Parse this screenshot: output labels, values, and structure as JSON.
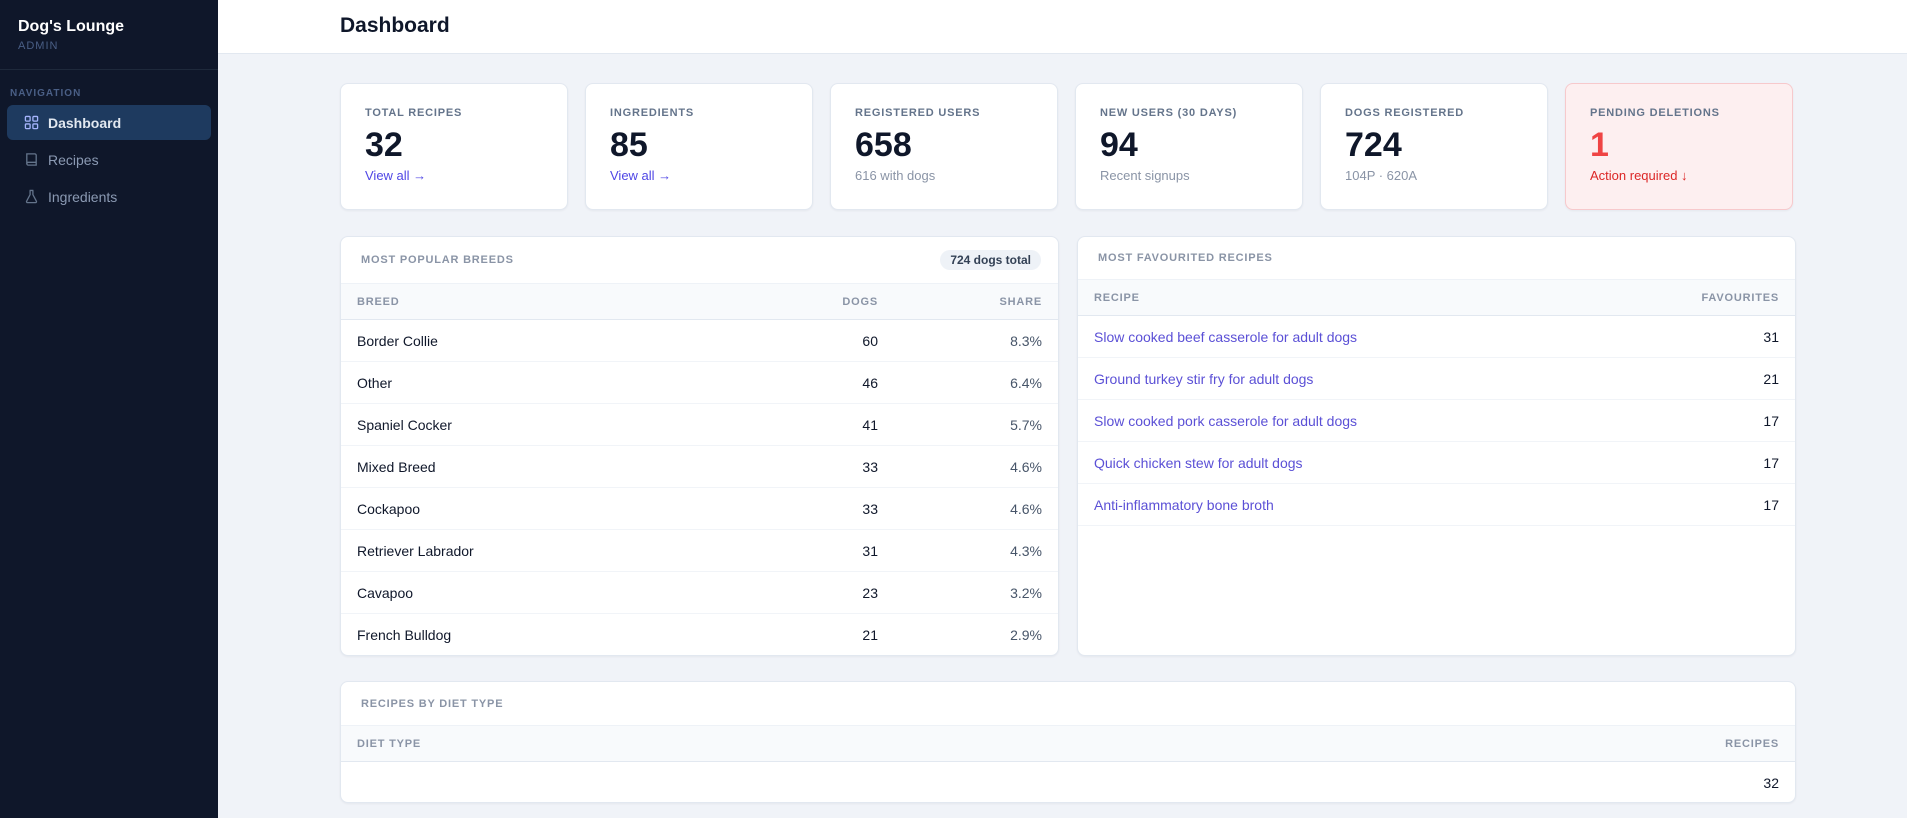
{
  "sidebar": {
    "brand_title": "Dog's Lounge",
    "brand_sub": "ADMIN",
    "nav_heading": "NAVIGATION",
    "items": [
      {
        "label": "Dashboard",
        "icon": "grid-icon",
        "active": true
      },
      {
        "label": "Recipes",
        "icon": "book-icon",
        "active": false
      },
      {
        "label": "Ingredients",
        "icon": "flask-icon",
        "active": false
      }
    ]
  },
  "header": {
    "title": "Dashboard"
  },
  "stats": [
    {
      "label": "TOTAL RECIPES",
      "value": "32",
      "link": "View all →"
    },
    {
      "label": "INGREDIENTS",
      "value": "85",
      "link": "View all →"
    },
    {
      "label": "REGISTERED USERS",
      "value": "658",
      "sub": "616 with dogs"
    },
    {
      "label": "NEW USERS (30 DAYS)",
      "value": "94",
      "sub": "Recent signups"
    },
    {
      "label": "DOGS REGISTERED",
      "value": "724",
      "sub": "104P · 620A"
    },
    {
      "label": "PENDING DELETIONS",
      "value": "1",
      "sub": "Action required ↓"
    }
  ],
  "breeds": {
    "title": "MOST POPULAR BREEDS",
    "badge": "724 dogs total",
    "columns": [
      "BREED",
      "DOGS",
      "SHARE"
    ],
    "rows": [
      {
        "breed": "Border Collie",
        "dogs": "60",
        "share": "8.3%"
      },
      {
        "breed": "Other",
        "dogs": "46",
        "share": "6.4%"
      },
      {
        "breed": "Spaniel Cocker",
        "dogs": "41",
        "share": "5.7%"
      },
      {
        "breed": "Mixed Breed",
        "dogs": "33",
        "share": "4.6%"
      },
      {
        "breed": "Cockapoo",
        "dogs": "33",
        "share": "4.6%"
      },
      {
        "breed": "Retriever Labrador",
        "dogs": "31",
        "share": "4.3%"
      },
      {
        "breed": "Cavapoo",
        "dogs": "23",
        "share": "3.2%"
      },
      {
        "breed": "French Bulldog",
        "dogs": "21",
        "share": "2.9%"
      }
    ]
  },
  "favourites": {
    "title": "MOST FAVOURITED RECIPES",
    "columns": [
      "RECIPE",
      "FAVOURITES"
    ],
    "rows": [
      {
        "recipe": "Slow cooked beef casserole for adult dogs",
        "count": "31"
      },
      {
        "recipe": "Ground turkey stir fry for adult dogs",
        "count": "21"
      },
      {
        "recipe": "Slow cooked pork casserole for adult dogs",
        "count": "17"
      },
      {
        "recipe": "Quick chicken stew for adult dogs",
        "count": "17"
      },
      {
        "recipe": "Anti-inflammatory bone broth",
        "count": "17"
      }
    ]
  },
  "diet": {
    "title": "RECIPES BY DIET TYPE",
    "columns": [
      "DIET TYPE",
      "RECIPES"
    ],
    "rows": [
      {
        "type": "",
        "count": "32"
      }
    ]
  },
  "colors": {
    "sidebar_bg": "#0f172a",
    "accent": "#4f46e5",
    "danger": "#ef4444"
  }
}
